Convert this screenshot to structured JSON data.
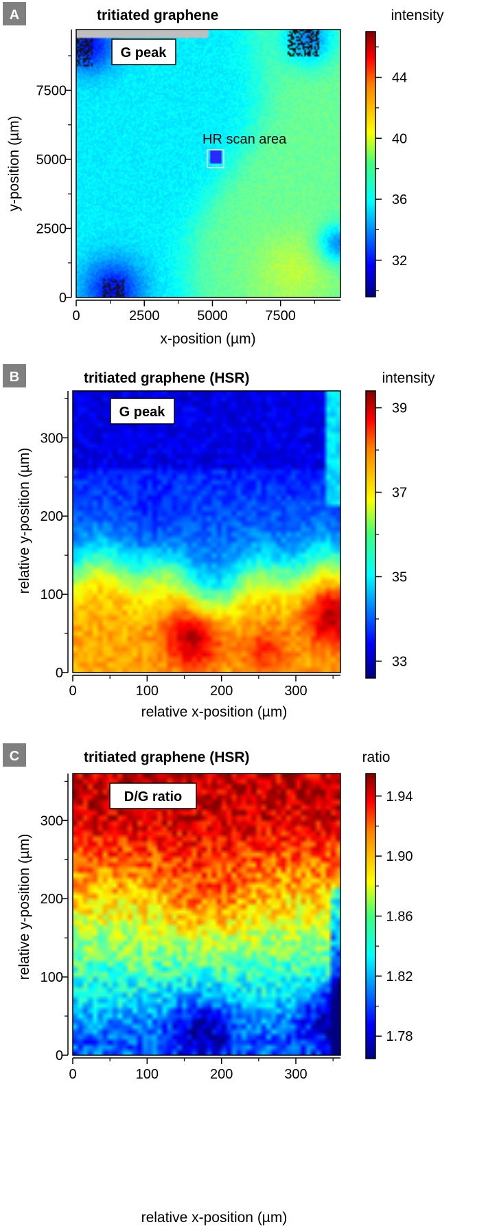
{
  "chart_data": [
    {
      "type": "heatmap",
      "panel_letter": "A",
      "title": "tritiated graphene",
      "inset_label": "G peak",
      "annotation": "HR scan area",
      "xlabel": "x-position  (µm)",
      "ylabel": "y-position  (µm)",
      "xlim": [
        0,
        9700
      ],
      "ylim": [
        0,
        9700
      ],
      "xticks": [
        0,
        2500,
        5000,
        7500
      ],
      "yticks": [
        0,
        2500,
        5000,
        7500
      ],
      "grid": false,
      "colorbar": {
        "label": "intensity",
        "range": [
          29.6,
          47.0
        ],
        "ticks": [
          32,
          36,
          40,
          44
        ]
      },
      "hr_scan_area": {
        "x": 5400,
        "y": 5100
      },
      "value_summary": "left and upper region ~35-36 (cyan); right-lower region ~38-40 (green) with yellow patch near x=7500, y=1000; low-intensity (~30, violet) areas in the four corners"
    },
    {
      "type": "heatmap",
      "panel_letter": "B",
      "title": "tritiated graphene (HSR)",
      "inset_label": "G peak",
      "xlabel": "relative x-position  (µm)",
      "ylabel": "relative y-position  (µm)",
      "xlim": [
        0,
        360
      ],
      "ylim": [
        0,
        360
      ],
      "xticks": [
        0,
        100,
        200,
        300
      ],
      "yticks": [
        0,
        100,
        200,
        300
      ],
      "grid": false,
      "colorbar": {
        "label": "intensity",
        "range": [
          32.6,
          39.4
        ],
        "ticks": [
          33,
          35,
          37,
          39
        ]
      },
      "value_summary": "top (y > 250) ~33; middle band (y 150-250) ~33-35; bottom (y < 120) ~37-38 with maxima ~39 near x=160, y=40 and x=350, y=60"
    },
    {
      "type": "heatmap",
      "panel_letter": "C",
      "title": "tritiated graphene (HSR)",
      "inset_label": "D/G ratio",
      "xlabel": "relative x-position  (µm)",
      "ylabel": "relative y-position  (µm)",
      "xlim": [
        0,
        360
      ],
      "ylim": [
        0,
        360
      ],
      "xticks": [
        0,
        100,
        200,
        300
      ],
      "yticks": [
        0,
        100,
        200,
        300
      ],
      "grid": false,
      "colorbar": {
        "label": "ratio",
        "range": [
          1.765,
          1.955
        ],
        "ticks": [
          "1.78",
          "1.82",
          "1.86",
          "1.90",
          "1.94"
        ]
      },
      "value_summary": "top (y > 300) ~1.93; y 180-280 ~1.90; y 100-180 ~1.86; bottom (y < 100) ~1.80 with minima ~1.78 near x=170, y=40 and x=340, y=60"
    }
  ]
}
